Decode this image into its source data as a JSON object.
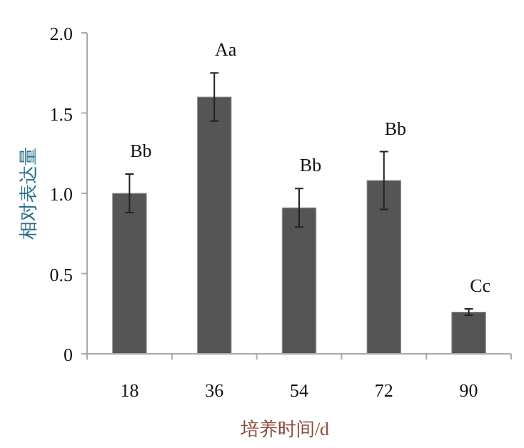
{
  "chart_data": {
    "type": "bar",
    "xlabel": "培养时间/d",
    "ylabel": "相对表达量",
    "categories": [
      "18",
      "36",
      "54",
      "72",
      "90"
    ],
    "values": [
      1.0,
      1.6,
      0.91,
      1.08,
      0.26
    ],
    "errors": [
      0.12,
      0.15,
      0.12,
      0.18,
      0.02
    ],
    "color": "#555555",
    "ylim": [
      0,
      2.0
    ],
    "yticks": [
      {
        "value": 0,
        "label": "0"
      },
      {
        "value": 0.5,
        "label": "0.5"
      },
      {
        "value": 1.0,
        "label": "1.0"
      },
      {
        "value": 1.5,
        "label": "1.5"
      },
      {
        "value": 2.0,
        "label": "2.0"
      }
    ],
    "grid": false,
    "annotations": [
      "Bb",
      "Aa",
      "Bb",
      "Bb",
      "Cc"
    ]
  }
}
